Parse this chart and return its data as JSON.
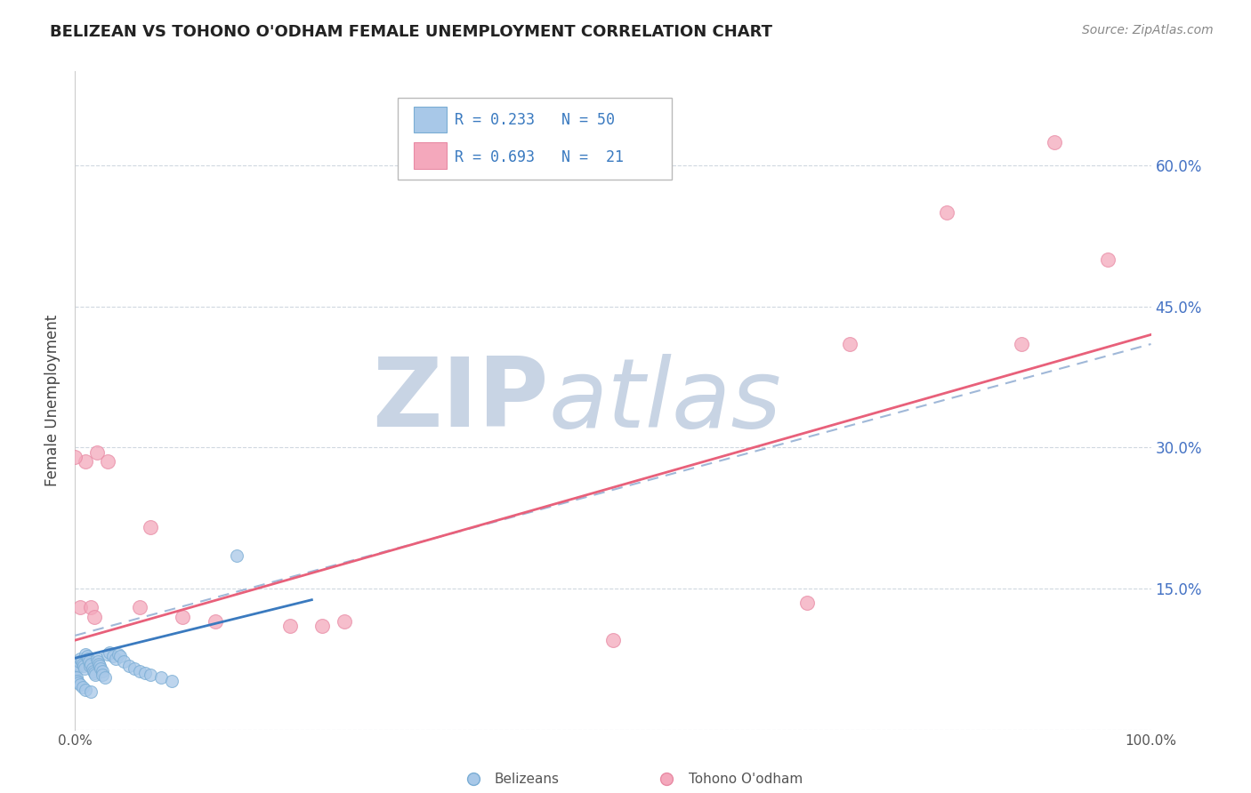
{
  "title": "BELIZEAN VS TOHONO O'ODHAM FEMALE UNEMPLOYMENT CORRELATION CHART",
  "source": "Source: ZipAtlas.com",
  "ylabel": "Female Unemployment",
  "legend_label1": "Belizeans",
  "legend_label2": "Tohono O'odham",
  "r1": 0.233,
  "n1": 50,
  "r2": 0.693,
  "n2": 21,
  "xlim": [
    0.0,
    1.0
  ],
  "ylim": [
    0.0,
    0.7
  ],
  "yticks": [
    0.0,
    0.15,
    0.3,
    0.45,
    0.6
  ],
  "ytick_labels": [
    "",
    "15.0%",
    "30.0%",
    "45.0%",
    "60.0%"
  ],
  "color_blue": "#a8c8e8",
  "color_blue_line": "#3a7abf",
  "color_blue_edge": "#7aadd4",
  "color_pink": "#f4a8bc",
  "color_pink_line": "#e8607a",
  "color_pink_edge": "#e88aa4",
  "color_dashed": "#a0b8d8",
  "background_color": "#ffffff",
  "grid_color": "#d0d8e0",
  "watermark_zip": "ZIP",
  "watermark_atlas": "atlas",
  "watermark_color": "#c8d4e4",
  "blue_x": [
    0.0,
    0.001,
    0.002,
    0.003,
    0.004,
    0.005,
    0.006,
    0.007,
    0.008,
    0.009,
    0.01,
    0.011,
    0.012,
    0.013,
    0.014,
    0.015,
    0.016,
    0.017,
    0.018,
    0.019,
    0.02,
    0.021,
    0.022,
    0.023,
    0.024,
    0.025,
    0.03,
    0.032,
    0.035,
    0.038,
    0.04,
    0.042,
    0.045,
    0.05,
    0.055,
    0.06,
    0.065,
    0.07,
    0.08,
    0.09,
    0.001,
    0.002,
    0.003,
    0.005,
    0.007,
    0.01,
    0.015,
    0.15,
    0.025,
    0.028
  ],
  "blue_y": [
    0.06,
    0.065,
    0.07,
    0.068,
    0.072,
    0.075,
    0.073,
    0.07,
    0.068,
    0.065,
    0.08,
    0.078,
    0.075,
    0.072,
    0.068,
    0.07,
    0.065,
    0.062,
    0.06,
    0.058,
    0.075,
    0.072,
    0.07,
    0.068,
    0.065,
    0.062,
    0.08,
    0.082,
    0.078,
    0.075,
    0.08,
    0.078,
    0.072,
    0.068,
    0.065,
    0.062,
    0.06,
    0.058,
    0.055,
    0.052,
    0.055,
    0.052,
    0.05,
    0.048,
    0.045,
    0.042,
    0.04,
    0.185,
    0.058,
    0.055
  ],
  "pink_x": [
    0.01,
    0.02,
    0.03,
    0.06,
    0.07,
    0.1,
    0.13,
    0.2,
    0.23,
    0.25,
    0.5,
    0.68,
    0.72,
    0.81,
    0.88,
    0.91,
    0.96,
    0.0,
    0.005,
    0.015,
    0.018
  ],
  "pink_y": [
    0.285,
    0.295,
    0.285,
    0.13,
    0.215,
    0.12,
    0.115,
    0.11,
    0.11,
    0.115,
    0.095,
    0.135,
    0.41,
    0.55,
    0.41,
    0.625,
    0.5,
    0.29,
    0.13,
    0.13,
    0.12
  ],
  "blue_line_x0": 0.0,
  "blue_line_x1": 0.22,
  "blue_line_y0": 0.076,
  "blue_line_y1": 0.138,
  "dashed_line_x0": 0.0,
  "dashed_line_x1": 1.0,
  "dashed_line_y0": 0.1,
  "dashed_line_y1": 0.41,
  "pink_line_x0": 0.0,
  "pink_line_x1": 1.0,
  "pink_line_y0": 0.095,
  "pink_line_y1": 0.42
}
